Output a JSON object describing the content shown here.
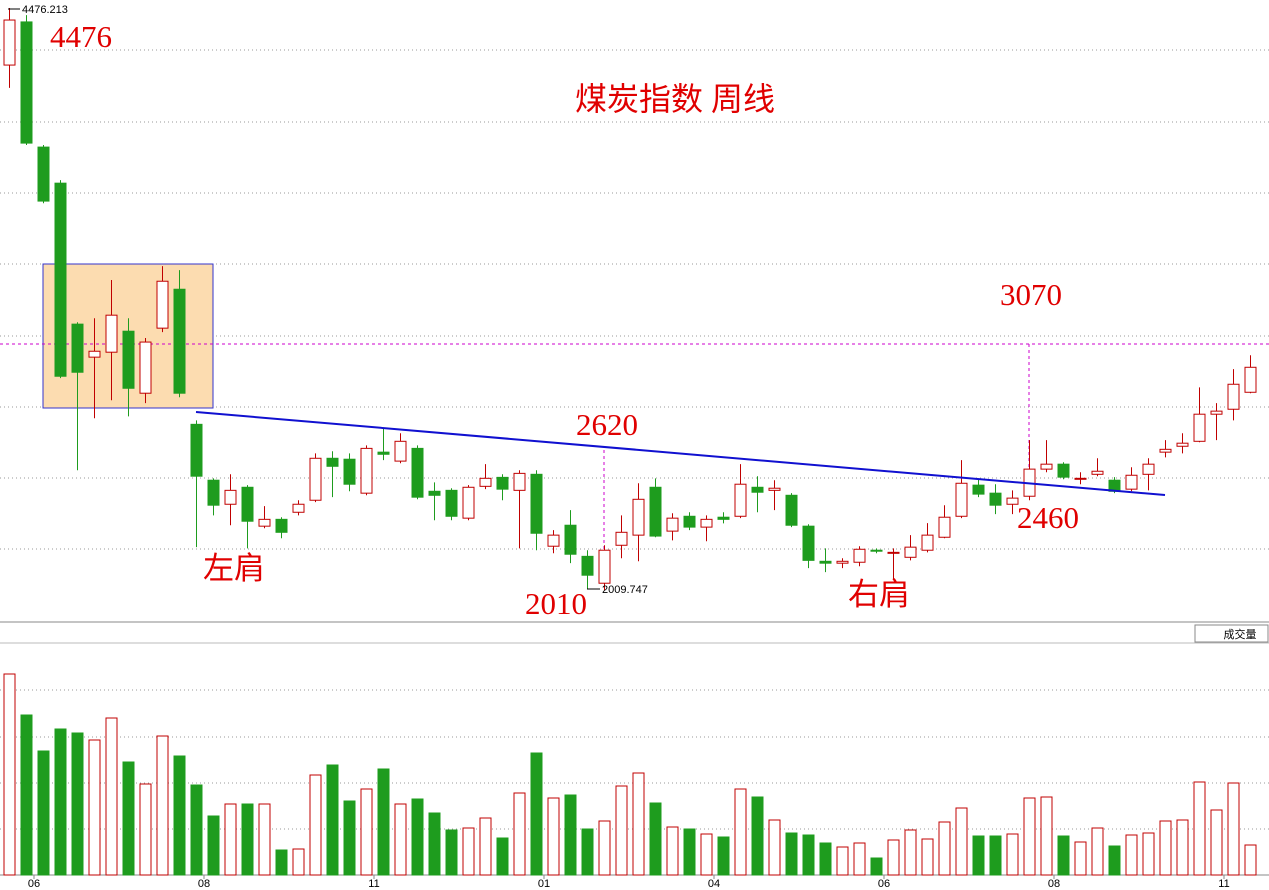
{
  "chart_data": {
    "type": "candlestick",
    "title": "煤炭指数 周线",
    "categories": [
      null,
      "06",
      null,
      null,
      null,
      null,
      null,
      null,
      null,
      null,
      null,
      "08",
      null,
      null,
      null,
      null,
      null,
      null,
      null,
      null,
      null,
      "11",
      null,
      null,
      null,
      null,
      null,
      null,
      null,
      null,
      null,
      "01",
      null,
      null,
      null,
      null,
      null,
      null,
      null,
      null,
      null,
      "04",
      null,
      null,
      null,
      null,
      null,
      null,
      null,
      null,
      null,
      "06",
      null,
      null,
      null,
      null,
      null,
      null,
      null,
      null,
      null,
      "08",
      null,
      null,
      null,
      null,
      null,
      null,
      null,
      null,
      null,
      "11",
      null,
      null
    ],
    "open": [
      4234,
      4417,
      3886,
      3733,
      3135,
      2995,
      3016,
      3105,
      2842,
      3118,
      3283,
      2710,
      2473,
      2371,
      2443,
      2278,
      2307,
      2337,
      2388,
      2566,
      2562,
      2418,
      2592,
      2554,
      2608,
      2426,
      2430,
      2312,
      2447,
      2485,
      2430,
      2498,
      2193,
      2282,
      2150,
      2036,
      2197,
      2240,
      2443,
      2257,
      2320,
      2274,
      2316,
      2320,
      2443,
      2430,
      2409,
      2278,
      2129,
      2121,
      2125,
      2176,
      2163,
      2146,
      2176,
      2231,
      2320,
      2452,
      2418,
      2371,
      2405,
      2520,
      2541,
      2477,
      2498,
      2473,
      2435,
      2498,
      2592,
      2617,
      2638,
      2753,
      2774,
      2846
    ],
    "high": [
      4476,
      4446,
      3895,
      3746,
      3143,
      3160,
      3322,
      3160,
      3076,
      3381,
      3364,
      2727,
      2481,
      2498,
      2452,
      2363,
      2316,
      2388,
      2587,
      2596,
      2587,
      2621,
      2693,
      2672,
      2621,
      2464,
      2439,
      2452,
      2541,
      2498,
      2515,
      2515,
      2261,
      2346,
      2176,
      2197,
      2324,
      2460,
      2481,
      2333,
      2337,
      2324,
      2337,
      2541,
      2490,
      2473,
      2418,
      2286,
      2184,
      2142,
      2193,
      2184,
      2184,
      2240,
      2291,
      2367,
      2558,
      2481,
      2456,
      2430,
      2643,
      2643,
      2549,
      2507,
      2566,
      2486,
      2528,
      2566,
      2643,
      2672,
      2867,
      2800,
      2944,
      3003
    ],
    "low": [
      4137,
      3895,
      3648,
      2906,
      2515,
      2736,
      2812,
      2744,
      2800,
      3101,
      2825,
      2189,
      2324,
      2282,
      2184,
      2269,
      2227,
      2324,
      2380,
      2401,
      2426,
      2409,
      2558,
      2545,
      2392,
      2303,
      2303,
      2303,
      2435,
      2388,
      2184,
      2176,
      2163,
      2121,
      2010,
      2006,
      2142,
      2129,
      2231,
      2218,
      2261,
      2214,
      2290,
      2312,
      2337,
      2346,
      2274,
      2100,
      2083,
      2100,
      2108,
      2163,
      2053,
      2133,
      2167,
      2227,
      2312,
      2401,
      2329,
      2329,
      2388,
      2507,
      2477,
      2456,
      2490,
      2418,
      2426,
      2430,
      2570,
      2587,
      2634,
      2643,
      2727,
      2842
    ],
    "close": [
      4425,
      3903,
      3657,
      2914,
      2931,
      3020,
      3173,
      2863,
      3059,
      3317,
      2842,
      2490,
      2367,
      2430,
      2299,
      2307,
      2252,
      2371,
      2566,
      2532,
      2456,
      2608,
      2583,
      2638,
      2401,
      2409,
      2320,
      2443,
      2481,
      2435,
      2502,
      2248,
      2240,
      2159,
      2070,
      2176,
      2252,
      2392,
      2236,
      2312,
      2274,
      2307,
      2307,
      2456,
      2422,
      2439,
      2282,
      2133,
      2121,
      2129,
      2180,
      2172,
      2167,
      2189,
      2240,
      2316,
      2460,
      2414,
      2367,
      2397,
      2520,
      2541,
      2486,
      2481,
      2511,
      2426,
      2494,
      2541,
      2604,
      2630,
      2753,
      2766,
      2880,
      2952
    ],
    "volume": [
      201,
      160,
      124,
      146,
      142,
      135,
      157,
      113,
      91,
      139,
      119,
      90,
      59,
      71,
      71,
      71,
      25,
      26,
      100,
      110,
      74,
      86,
      106,
      71,
      76,
      62,
      45,
      47,
      57,
      37,
      82,
      122,
      77,
      80,
      46,
      54,
      89,
      102,
      72,
      48,
      46,
      41,
      38,
      86,
      78,
      55,
      42,
      40,
      32,
      28,
      32,
      17,
      35,
      45,
      36,
      53,
      67,
      39,
      39,
      41,
      77,
      78,
      39,
      33,
      47,
      29,
      40,
      42,
      54,
      55,
      93,
      65,
      92,
      30
    ],
    "up_color": "#c00000",
    "down_color": "#1e9c1e",
    "ylim": [
      1880,
      4510
    ],
    "volume_ylim": [
      0,
      230
    ],
    "max_label": "4476.213",
    "min_label": "2009.747",
    "annotations": [
      "4476",
      "3070",
      "2620",
      "2460",
      "2010",
      "左肩",
      "右肩"
    ],
    "volume_label": "成交量"
  }
}
